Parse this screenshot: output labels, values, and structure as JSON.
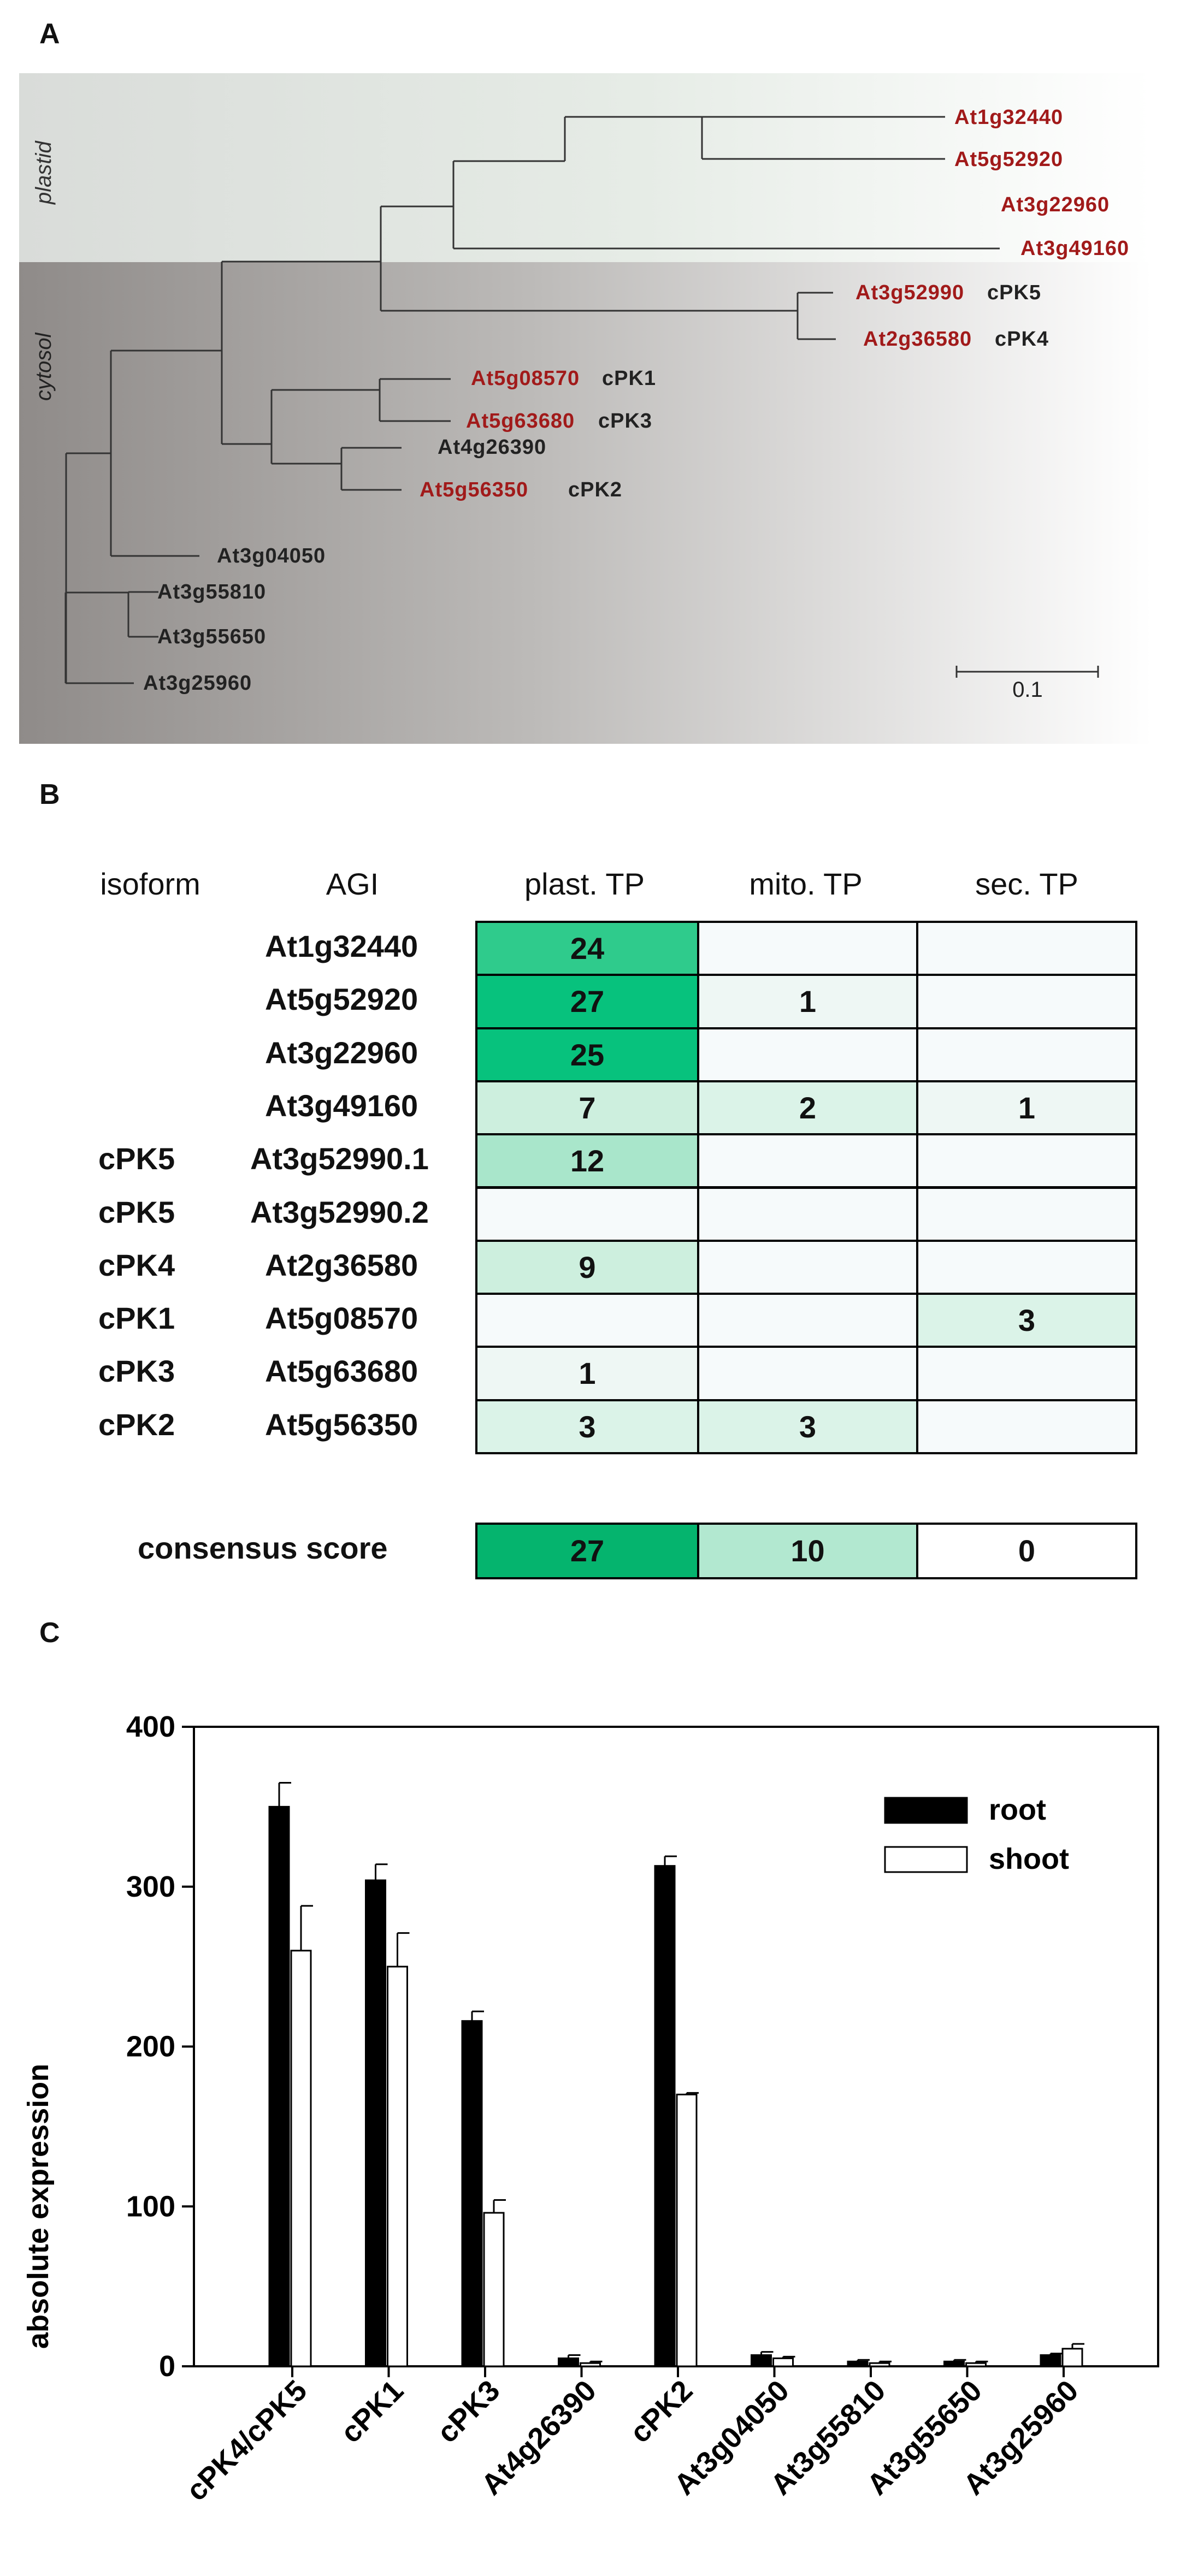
{
  "panels": {
    "a": "A",
    "b": "B",
    "c": "C"
  },
  "tree": {
    "clade_labels": {
      "plastid": "plastid",
      "cytosol": "cytosol"
    },
    "colors": {
      "red": "#a11a1a",
      "black": "#222222",
      "plastid_bg": "#e0e4e0",
      "cytosol_bg": "#9c9a98"
    },
    "leaves": [
      {
        "agi": "At1g32440",
        "pk": "",
        "red": true
      },
      {
        "agi": "At5g52920",
        "pk": "",
        "red": true
      },
      {
        "agi": "At3g22960",
        "pk": "",
        "red": true
      },
      {
        "agi": "At3g49160",
        "pk": "",
        "red": true
      },
      {
        "agi": "At3g52990",
        "pk": "cPK5",
        "red": true
      },
      {
        "agi": "At2g36580",
        "pk": "cPK4",
        "red": true
      },
      {
        "agi": "At5g08570",
        "pk": "cPK1",
        "red": true
      },
      {
        "agi": "At5g63680",
        "pk": "cPK3",
        "red": true
      },
      {
        "agi": "At4g26390",
        "pk": "",
        "red": false
      },
      {
        "agi": "At5g56350",
        "pk": "cPK2",
        "red": true
      },
      {
        "agi": "At3g04050",
        "pk": "",
        "red": false
      },
      {
        "agi": "At3g55810",
        "pk": "",
        "red": false
      },
      {
        "agi": "At3g55650",
        "pk": "",
        "red": false
      },
      {
        "agi": "At3g25960",
        "pk": "",
        "red": false
      }
    ],
    "scale_label": "0.1"
  },
  "table": {
    "headers": {
      "isoform": "isoform",
      "agi": "AGI",
      "plast": "plast. TP",
      "mito": "mito. TP",
      "sec": "sec. TP"
    },
    "rows": [
      {
        "isoform": "",
        "agi": "At1g32440",
        "plast": "24",
        "mito": "",
        "sec": ""
      },
      {
        "isoform": "",
        "agi": "At5g52920",
        "plast": "27",
        "mito": "1",
        "sec": ""
      },
      {
        "isoform": "",
        "agi": "At3g22960",
        "plast": "25",
        "mito": "",
        "sec": ""
      },
      {
        "isoform": "",
        "agi": "At3g49160",
        "plast": "7",
        "mito": "2",
        "sec": "1"
      },
      {
        "isoform": "cPK5",
        "agi": "At3g52990.1",
        "plast": "12",
        "mito": "",
        "sec": ""
      },
      {
        "isoform": "cPK5",
        "agi": "At3g52990.2",
        "plast": "",
        "mito": "",
        "sec": ""
      },
      {
        "isoform": "cPK4",
        "agi": "At2g36580",
        "plast": "9",
        "mito": "",
        "sec": ""
      },
      {
        "isoform": "cPK1",
        "agi": "At5g08570",
        "plast": "",
        "mito": "",
        "sec": "3"
      },
      {
        "isoform": "cPK3",
        "agi": "At5g63680",
        "plast": "1",
        "mito": "",
        "sec": ""
      },
      {
        "isoform": "cPK2",
        "agi": "At5g56350",
        "plast": "3",
        "mito": "3",
        "sec": ""
      }
    ],
    "consensus": {
      "label": "consensus score",
      "plast": "27",
      "mito": "10",
      "sec": "0"
    }
  },
  "chart_data": {
    "type": "bar",
    "ylabel": "absolute expression",
    "xlabel": "",
    "ylim": [
      0,
      400
    ],
    "yticks": [
      0,
      100,
      200,
      300,
      400
    ],
    "categories": [
      "cPK4/cPK5",
      "cPK1",
      "cPK3",
      "At4g26390",
      "cPK2",
      "At3g04050",
      "At3g55810",
      "At3g55650",
      "At3g25960"
    ],
    "series": [
      {
        "name": "root",
        "values": [
          350,
          304,
          216,
          5,
          313,
          7,
          3,
          3,
          7
        ],
        "errors": [
          15,
          10,
          6,
          2,
          6,
          2,
          1,
          1,
          1
        ],
        "color": "#000000"
      },
      {
        "name": "shoot",
        "values": [
          260,
          250,
          96,
          2,
          170,
          5,
          2,
          2,
          11
        ],
        "errors": [
          28,
          21,
          8,
          1,
          1,
          1,
          1,
          1,
          3
        ],
        "color": "#ffffff"
      }
    ],
    "legend_position": "top-right"
  }
}
